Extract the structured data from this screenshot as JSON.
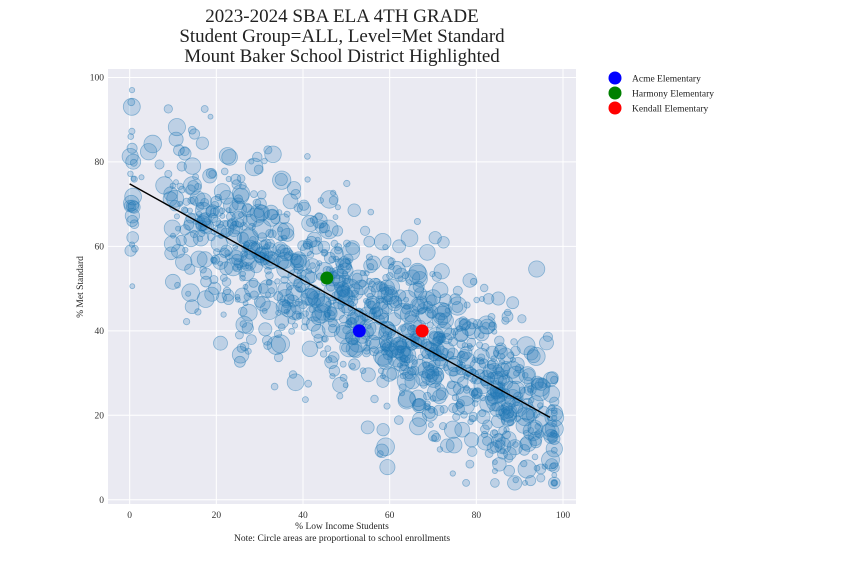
{
  "chart_data": {
    "type": "scatter",
    "title": [
      "2023-2024 SBA ELA 4TH GRADE",
      "Student Group=ALL, Level=Met Standard",
      "Mount Baker School District Highlighted"
    ],
    "xlabel": "% Low Income Students",
    "note": "Note: Circle areas are proportional to school enrollments",
    "ylabel": "% Met Standard",
    "xlim": [
      -5,
      103
    ],
    "ylim": [
      -1,
      102
    ],
    "xticks": [
      0,
      20,
      40,
      60,
      80,
      100
    ],
    "yticks": [
      0,
      20,
      40,
      60,
      80,
      100
    ],
    "grid": true,
    "legend_position": "outside-right",
    "colors": {
      "background": "#eaeaf2",
      "grid": "#ffffff",
      "points": "#1f77b4",
      "trend": "#000000"
    },
    "trend_line": {
      "x": [
        0,
        97
      ],
      "y": [
        74.8,
        19.5
      ]
    },
    "highlighted": [
      {
        "name": "Acme Elementary",
        "x": 53,
        "y": 40,
        "color": "#0000ff"
      },
      {
        "name": "Harmony Elementary",
        "x": 45.5,
        "y": 52.5,
        "color": "#008000"
      },
      {
        "name": "Kendall Elementary",
        "x": 67.5,
        "y": 40,
        "color": "#ff0000"
      }
    ],
    "background_points": {
      "count": 1150,
      "description_x_range": [
        0,
        98
      ],
      "description_y_range": [
        4,
        97
      ],
      "seed": 20232024
    }
  }
}
